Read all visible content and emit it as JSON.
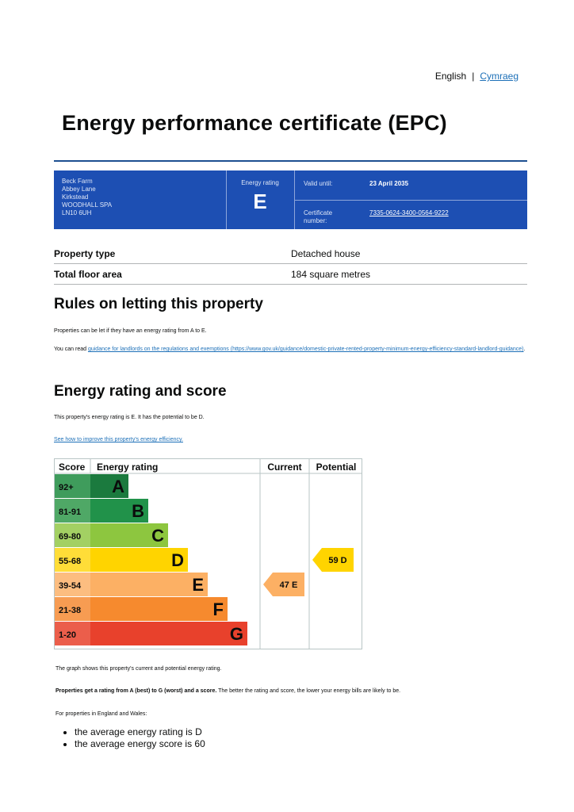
{
  "language": {
    "english": "English",
    "separator": "|",
    "cymraeg": "Cymraeg"
  },
  "title": "Energy performance certificate (EPC)",
  "banner": {
    "address": [
      "Beck Farm",
      "Abbey Lane",
      "Kirkstead",
      "WOODHALL SPA",
      "LN10 6UH"
    ],
    "energy_rating_label": "Energy rating",
    "energy_rating": "E",
    "valid_until_label": "Valid until:",
    "valid_until": "23 April 2035",
    "certificate_label": "Certificate number:",
    "certificate_number": "7335-0624-3400-0564-9222"
  },
  "property": [
    {
      "label": "Property type",
      "value": "Detached house"
    },
    {
      "label": "Total floor area",
      "value": "184 square metres"
    }
  ],
  "letting": {
    "heading": "Rules on letting this property",
    "line1": "Properties can be let if they have an energy rating from A to E.",
    "line2_prefix": "You can read",
    "line2_link": "guidance for landlords on the regulations and exemptions (https://www.gov.uk/guidance/domestic-private-rented-property-minimum-energy-efficiency-standard-landlord-guidance)",
    "line2_suffix": "."
  },
  "rating_section": {
    "heading": "Energy rating and score",
    "summary": "This property's energy rating is E. It has the potential to be D.",
    "improve_link": "See how to improve this property's energy efficiency."
  },
  "chart_data": {
    "type": "table",
    "headers": {
      "score": "Score",
      "rating": "Energy rating",
      "current": "Current",
      "potential": "Potential"
    },
    "bands": [
      {
        "score": "92+",
        "letter": "A",
        "color": "#1b7a3e",
        "score_bg": "#3f9c5c"
      },
      {
        "score": "81-91",
        "letter": "B",
        "color": "#21924a",
        "score_bg": "#4fa866"
      },
      {
        "score": "69-80",
        "letter": "C",
        "color": "#8dc63f",
        "score_bg": "#a3d063"
      },
      {
        "score": "55-68",
        "letter": "D",
        "color": "#ffd400",
        "score_bg": "#ffdd38"
      },
      {
        "score": "39-54",
        "letter": "E",
        "color": "#fcb064",
        "score_bg": "#fcbd80"
      },
      {
        "score": "21-38",
        "letter": "F",
        "color": "#f68a2e",
        "score_bg": "#f79c52"
      },
      {
        "score": "1-20",
        "letter": "G",
        "color": "#e8412c",
        "score_bg": "#eb5e4b"
      }
    ],
    "current": {
      "score": 47,
      "letter": "E",
      "label": "47 E",
      "color": "#fcb064"
    },
    "potential": {
      "score": 59,
      "letter": "D",
      "label": "59 D",
      "color": "#ffd400"
    }
  },
  "footer": {
    "graph_note": "The graph shows this property's current and potential energy rating.",
    "rating_note_bold": "Properties get a rating from A (best) to G (worst) and a score.",
    "rating_note_rest": "The better the rating and score, the lower your energy bills are likely to be.",
    "england_wales": "For properties in England and Wales:",
    "averages": [
      "the average energy rating is D",
      "the average energy score is 60"
    ]
  }
}
